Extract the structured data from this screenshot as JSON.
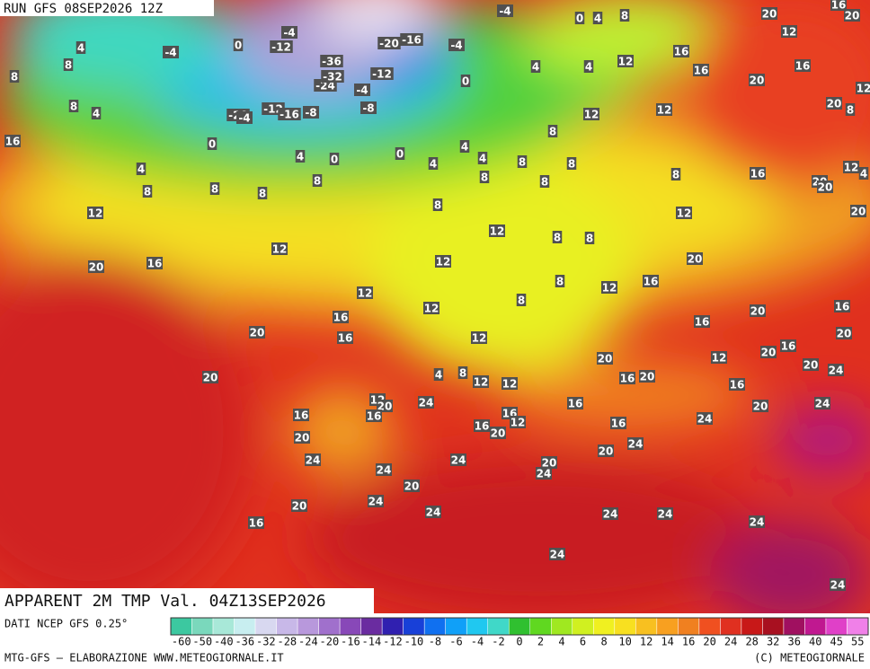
{
  "header": {
    "run": "RUN GFS 08SEP2026 12Z",
    "title": "APPARENT 2M TMP Val. 04Z13SEP2026"
  },
  "map": {
    "labels": [
      4,
      -4,
      0,
      -12,
      -4,
      -36,
      -24,
      -32,
      -12,
      -4,
      -8,
      -20,
      -16,
      -4,
      -4,
      0,
      4,
      8,
      8,
      8,
      8,
      4,
      -20,
      -4,
      -12,
      -16,
      -8,
      0,
      4,
      0,
      0,
      0,
      4,
      4,
      12,
      16,
      16,
      20,
      16,
      12,
      20,
      20,
      16,
      12,
      20,
      8,
      12,
      12,
      8,
      16,
      4,
      8,
      8,
      8,
      8,
      4,
      4,
      4,
      8,
      8,
      8,
      8,
      8,
      16,
      20,
      20,
      12,
      4,
      20,
      12,
      12,
      8,
      12,
      8,
      8,
      12,
      20,
      16,
      12,
      8,
      12,
      16,
      20,
      12,
      8,
      12,
      16,
      20,
      16,
      16,
      20,
      16,
      12,
      20,
      12,
      20,
      16,
      20,
      24,
      20,
      20,
      4,
      8,
      12,
      12,
      16,
      20,
      16,
      12,
      20,
      24,
      16,
      20,
      24,
      16,
      16,
      16,
      12,
      16,
      20,
      16,
      24,
      20,
      20,
      24,
      24,
      24,
      20,
      24,
      24,
      20,
      24,
      20,
      24,
      24,
      24,
      24,
      16,
      24,
      24
    ]
  },
  "legend": {
    "source": "DATI NCEP GFS 0.25°",
    "ticks": [
      -60,
      -50,
      -40,
      -36,
      -32,
      -28,
      -24,
      -20,
      -16,
      -14,
      -12,
      -10,
      -8,
      -6,
      -4,
      -2,
      0,
      2,
      4,
      6,
      8,
      10,
      12,
      14,
      16,
      20,
      24,
      28,
      32,
      36,
      40,
      45,
      55
    ],
    "colors": [
      "#3cc8a0",
      "#7ad8bc",
      "#a8e8d8",
      "#c8eef0",
      "#d8d8f0",
      "#c8b8e8",
      "#b898dc",
      "#a070cc",
      "#8848b8",
      "#6a2ca0",
      "#3020b0",
      "#1840d8",
      "#1070f0",
      "#10a0f8",
      "#20c8f0",
      "#40d8c8",
      "#30c030",
      "#60d820",
      "#a0e820",
      "#d0f020",
      "#f0f020",
      "#f8e020",
      "#f8c020",
      "#f8a020",
      "#f08020",
      "#f05020",
      "#e03020",
      "#c81818",
      "#a81020",
      "#a01060",
      "#c01890",
      "#e040c8",
      "#f080e8"
    ]
  },
  "footer": {
    "left": "MTG-GFS — ELABORAZIONE WWW.METEOGIORNALE.IT",
    "right": "(C) METEOGIORNALE"
  }
}
